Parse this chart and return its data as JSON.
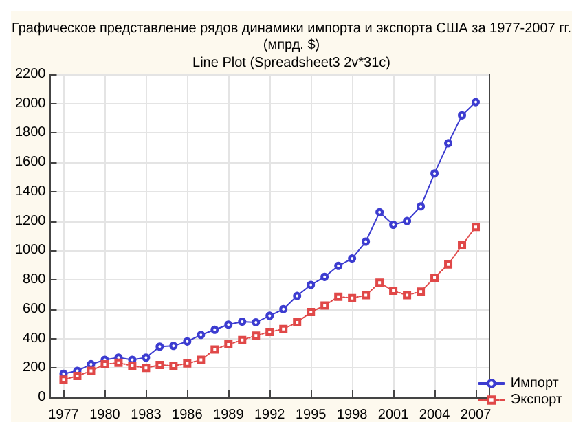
{
  "chart_data": {
    "type": "line",
    "title": "Графическое представление рядов динамики импорта и экспорта США за 1977-2007 гг.\n(мпрд. $)",
    "subtitle": "Line Plot (Spreadsheet3 2v*31c)",
    "x": [
      1977,
      1978,
      1979,
      1980,
      1981,
      1982,
      1983,
      1984,
      1985,
      1986,
      1987,
      1988,
      1989,
      1990,
      1991,
      1992,
      1993,
      1994,
      1995,
      1996,
      1997,
      1998,
      1999,
      2000,
      2001,
      2002,
      2003,
      2004,
      2005,
      2006,
      2007
    ],
    "series": [
      {
        "name": "Импорт",
        "color": "#3c3cd0",
        "marker": "circle",
        "line_style": "solid",
        "values": [
          160,
          180,
          225,
          255,
          270,
          255,
          270,
          345,
          350,
          380,
          425,
          460,
          495,
          515,
          510,
          555,
          600,
          690,
          765,
          820,
          895,
          945,
          1060,
          1260,
          1175,
          1200,
          1300,
          1525,
          1730,
          1920,
          2010
        ]
      },
      {
        "name": "Экспорт",
        "color": "#e04848",
        "marker": "square",
        "line_style": "dotted",
        "values": [
          120,
          145,
          180,
          225,
          235,
          215,
          200,
          220,
          215,
          230,
          255,
          325,
          360,
          390,
          420,
          445,
          465,
          510,
          580,
          625,
          685,
          675,
          695,
          780,
          725,
          695,
          720,
          815,
          905,
          1035,
          1160
        ]
      }
    ],
    "xlim": [
      1976,
      2008
    ],
    "xticks": [
      1977,
      1980,
      1983,
      1986,
      1989,
      1992,
      1995,
      1998,
      2001,
      2004,
      2007
    ],
    "ylim": [
      0,
      2200
    ],
    "yticks": [
      0,
      200,
      400,
      600,
      800,
      1000,
      1200,
      1400,
      1600,
      1800,
      2000,
      2200
    ],
    "grid": true,
    "legend": "bottom right"
  }
}
